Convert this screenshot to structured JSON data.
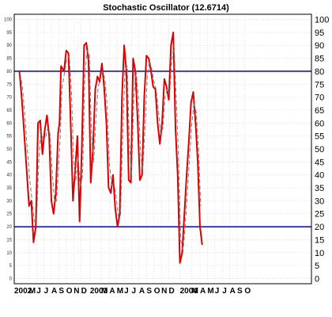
{
  "chart_data": {
    "type": "line",
    "title": "Stochastic Oscillator (12.6714)",
    "xlabel": "",
    "ylabel": "",
    "ylim": [
      -2,
      102
    ],
    "xlim": [
      0,
      40
    ],
    "yticks": [
      0,
      5,
      10,
      15,
      20,
      25,
      30,
      35,
      40,
      45,
      50,
      55,
      60,
      65,
      70,
      75,
      80,
      85,
      90,
      95,
      100
    ],
    "xticks": [
      {
        "x": 0.0,
        "label": "2002"
      },
      {
        "x": 2.0,
        "label": "M"
      },
      {
        "x": 3.0,
        "label": "J"
      },
      {
        "x": 4.0,
        "label": "J"
      },
      {
        "x": 5.0,
        "label": "A"
      },
      {
        "x": 6.0,
        "label": "S"
      },
      {
        "x": 7.0,
        "label": "O"
      },
      {
        "x": 8.0,
        "label": "N"
      },
      {
        "x": 9.0,
        "label": "D"
      },
      {
        "x": 10.2,
        "label": "2003"
      },
      {
        "x": 11.7,
        "label": "M"
      },
      {
        "x": 12.8,
        "label": "A"
      },
      {
        "x": 13.8,
        "label": "M"
      },
      {
        "x": 14.8,
        "label": "J"
      },
      {
        "x": 15.8,
        "label": "J"
      },
      {
        "x": 16.8,
        "label": "A"
      },
      {
        "x": 17.8,
        "label": "S"
      },
      {
        "x": 18.8,
        "label": "O"
      },
      {
        "x": 19.8,
        "label": "N"
      },
      {
        "x": 20.8,
        "label": "D"
      },
      {
        "x": 22.3,
        "label": "2004"
      },
      {
        "x": 23.9,
        "label": "M"
      },
      {
        "x": 25.0,
        "label": "A"
      },
      {
        "x": 26.0,
        "label": "M"
      },
      {
        "x": 27.0,
        "label": "J"
      },
      {
        "x": 28.0,
        "label": "J"
      },
      {
        "x": 29.0,
        "label": "A"
      },
      {
        "x": 30.0,
        "label": "S"
      },
      {
        "x": 31.0,
        "label": "O"
      }
    ],
    "reference_lines": [
      {
        "y": 80,
        "color": "#0000cc"
      },
      {
        "y": 20,
        "color": "#0000cc"
      }
    ],
    "grid": true,
    "series": [
      {
        "color": "#dd0000",
        "style": "solid",
        "x": [
          0.7,
          1.0,
          1.3,
          1.6,
          2.0,
          2.3,
          2.6,
          2.9,
          3.2,
          3.5,
          3.8,
          4.1,
          4.4,
          4.7,
          5.0,
          5.3,
          5.6,
          5.9,
          6.1,
          6.3,
          6.7,
          7.0,
          7.3,
          7.6,
          7.9,
          8.2,
          8.5,
          8.8,
          9.1,
          9.4,
          9.7,
          10.0,
          10.3,
          10.6,
          10.9,
          11.2,
          11.5,
          11.8,
          12.1,
          12.4,
          12.7,
          13.0,
          13.3,
          13.6,
          13.9,
          14.2,
          14.5,
          14.8,
          15.1,
          15.4,
          15.7,
          16.0,
          16.3,
          16.6,
          16.9,
          17.2,
          17.5,
          17.8,
          18.1,
          18.4,
          18.7,
          19.0,
          19.3,
          19.6,
          19.9,
          20.2,
          20.5,
          20.8,
          21.1,
          21.4,
          21.7,
          22.0,
          22.3,
          22.6,
          22.9,
          23.2,
          23.5,
          23.8,
          24.1,
          24.4,
          24.7,
          25.0,
          25.3,
          25.6,
          25.9,
          26.2,
          26.5,
          26.8,
          27.1,
          27.4,
          27.7,
          28.0,
          28.3,
          28.6,
          28.9,
          29.2
        ],
        "values": [
          80,
          70,
          58,
          45,
          28,
          30,
          14,
          20,
          60,
          61,
          48,
          57,
          63,
          55,
          30,
          25,
          33,
          56,
          60,
          82,
          80,
          88,
          87,
          60,
          30,
          42,
          55,
          22,
          50,
          90,
          91,
          84,
          37,
          50,
          73,
          78,
          76,
          83,
          74,
          60,
          35,
          33,
          40,
          27,
          20,
          25,
          70,
          90,
          80,
          38,
          37,
          85,
          80,
          62,
          38,
          40,
          70,
          86,
          85,
          80,
          74,
          73,
          60,
          52,
          60,
          77,
          74,
          69,
          90,
          95,
          58,
          40,
          6,
          10,
          25,
          40,
          53,
          68,
          72,
          60,
          45,
          20,
          13,
          null,
          null,
          null,
          null,
          null,
          null,
          null,
          null,
          null,
          null,
          null,
          null,
          null
        ]
      },
      {
        "color": "#777777",
        "style": "dashed",
        "x": [
          0.8,
          1.1,
          1.4,
          1.7,
          2.1,
          2.4,
          2.7,
          3.0,
          3.3,
          3.6,
          3.9,
          4.2,
          4.5,
          4.8,
          5.1,
          5.4,
          5.7,
          6.0,
          6.2,
          6.4,
          6.8,
          7.1,
          7.4,
          7.7,
          8.0,
          8.3,
          8.6,
          8.9,
          9.2,
          9.5,
          9.8,
          10.1,
          10.4,
          10.7,
          11.0,
          11.3,
          11.6,
          11.9,
          12.2,
          12.5,
          12.8,
          13.1,
          13.4,
          13.7,
          14.0,
          14.3,
          14.6,
          14.9,
          15.2,
          15.5,
          15.8,
          16.1,
          16.4,
          16.7,
          17.0,
          17.3,
          17.6,
          17.9,
          18.2,
          18.5,
          18.8,
          19.1,
          19.4,
          19.7,
          20.0,
          20.3,
          20.6,
          20.9,
          21.2,
          21.5,
          21.8,
          22.1,
          22.4,
          22.7,
          23.0,
          23.3,
          23.6,
          23.9,
          24.2,
          24.5,
          24.8,
          25.1
        ],
        "values": [
          79,
          74,
          64,
          52,
          38,
          30,
          22,
          22,
          45,
          57,
          54,
          54,
          58,
          56,
          42,
          30,
          30,
          45,
          55,
          73,
          80,
          85,
          86,
          72,
          45,
          38,
          47,
          35,
          40,
          78,
          88,
          87,
          55,
          45,
          62,
          74,
          77,
          80,
          77,
          67,
          45,
          36,
          37,
          32,
          24,
          24,
          55,
          80,
          82,
          52,
          40,
          70,
          80,
          70,
          48,
          42,
          58,
          78,
          84,
          81,
          76,
          73,
          65,
          56,
          58,
          70,
          73,
          71,
          84,
          90,
          70,
          48,
          15,
          10,
          20,
          33,
          47,
          60,
          68,
          64,
          50,
          28
        ]
      }
    ]
  }
}
